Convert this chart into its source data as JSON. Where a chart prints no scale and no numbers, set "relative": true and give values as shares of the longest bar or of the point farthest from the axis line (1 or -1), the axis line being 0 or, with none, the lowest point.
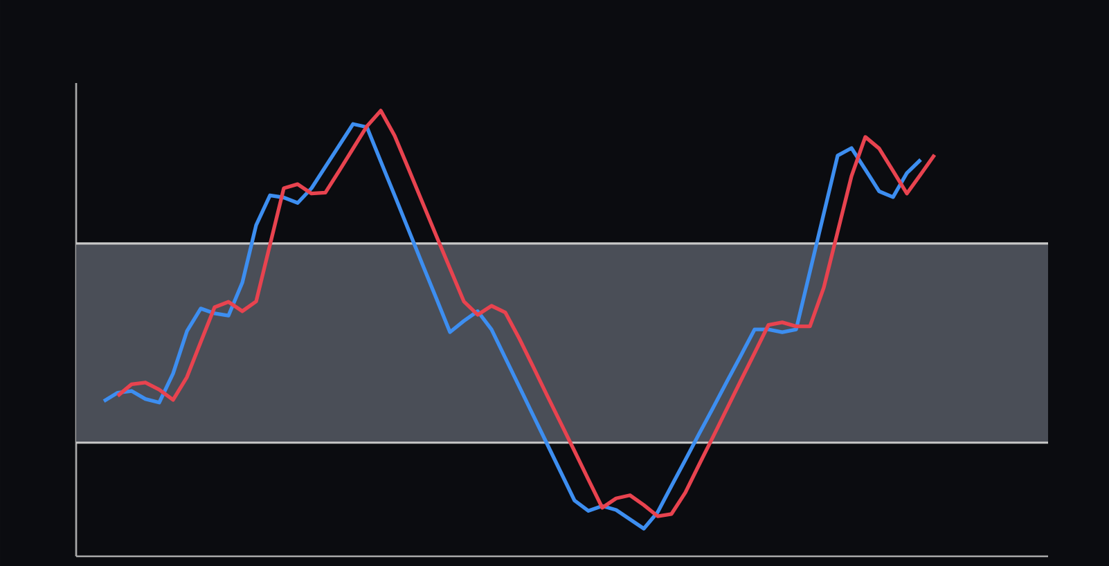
{
  "chart_data": {
    "type": "line",
    "relative": true,
    "categories": [
      null,
      null,
      null,
      null,
      null,
      null,
      null,
      null,
      null,
      null,
      null,
      null,
      null,
      null,
      null,
      null,
      null,
      null,
      null,
      null,
      null,
      null,
      null,
      null,
      null,
      null,
      null,
      null,
      null,
      null,
      null,
      null,
      null,
      null,
      null,
      null,
      null,
      null,
      null,
      null,
      null,
      null,
      null,
      null,
      null,
      null,
      null,
      null,
      null,
      null,
      null,
      null,
      null,
      null,
      null,
      null,
      null,
      null,
      null,
      null,
      null
    ],
    "bands": [
      {
        "axis": "y",
        "from": 0.255,
        "to": 0.702,
        "color": "#4a4e57"
      }
    ],
    "ref_lines": [
      {
        "axis": "y",
        "value": 0.255,
        "color": "#c8c8c8"
      },
      {
        "axis": "y",
        "value": 0.702,
        "color": "#c8c8c8"
      }
    ],
    "series": [
      {
        "color": "#3d8ef0",
        "values": [
          0.348,
          0.367,
          0.371,
          0.353,
          0.345,
          0.41,
          0.505,
          0.556,
          0.545,
          0.54,
          0.614,
          0.743,
          0.81,
          0.805,
          0.793,
          0.826,
          0.874,
          0.922,
          0.97,
          0.963,
          0.886,
          0.81,
          0.733,
          0.656,
          0.58,
          0.503,
          0.528,
          0.55,
          0.509,
          0.445,
          0.381,
          0.317,
          0.253,
          0.189,
          0.125,
          0.102,
          0.113,
          0.104,
          0.083,
          0.062,
          0.099,
          0.158,
          0.216,
          0.275,
          0.333,
          0.392,
          0.45,
          0.509,
          0.509,
          0.503,
          0.509,
          0.639,
          0.769,
          0.899,
          0.916,
          0.868,
          0.819,
          0.806,
          0.86,
          0.89,
          null
        ]
      },
      {
        "color": "#e8434f",
        "values": [
          null,
          0.36,
          0.386,
          0.39,
          0.374,
          0.351,
          0.402,
          0.481,
          0.559,
          0.571,
          0.55,
          0.572,
          0.699,
          0.826,
          0.835,
          0.814,
          0.816,
          0.865,
          0.915,
          0.965,
          1.0,
          0.944,
          0.87,
          0.795,
          0.72,
          0.646,
          0.572,
          0.542,
          0.562,
          0.547,
          0.489,
          0.426,
          0.362,
          0.299,
          0.236,
          0.172,
          0.109,
          0.13,
          0.137,
          0.115,
          0.09,
          0.095,
          0.143,
          0.206,
          0.268,
          0.331,
          0.394,
          0.456,
          0.519,
          0.525,
          0.516,
          0.516,
          0.603,
          0.728,
          0.853,
          0.941,
          0.915,
          0.865,
          0.814,
          0.857,
          0.901
        ]
      }
    ]
  }
}
